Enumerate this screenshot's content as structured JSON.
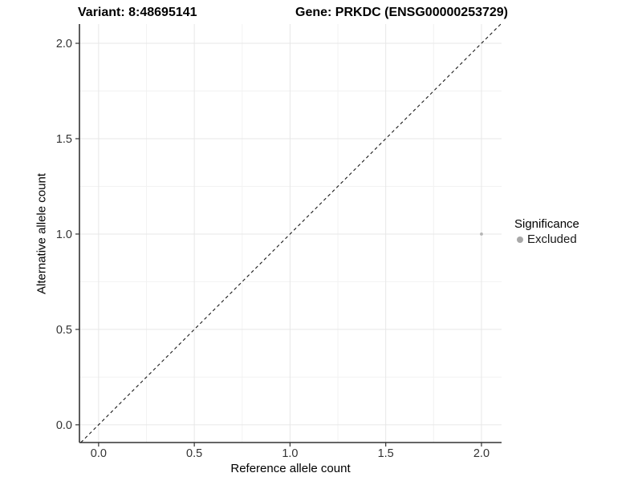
{
  "header": {
    "variant_title": "Variant: 8:48695141",
    "gene_title": "Gene: PRKDC (ENSG00000253729)"
  },
  "chart_data": {
    "type": "scatter",
    "xlabel": "Reference allele count",
    "ylabel": "Alternative allele count",
    "xlim": [
      -0.1,
      2.105
    ],
    "ylim": [
      -0.093,
      2.101
    ],
    "x_ticks": {
      "values": [
        0.0,
        0.5,
        1.0,
        1.5,
        2.0
      ],
      "labels": [
        "0.0",
        "0.5",
        "1.0",
        "1.5",
        "2.0"
      ]
    },
    "y_ticks": {
      "values": [
        0.0,
        0.5,
        1.0,
        1.5,
        2.0
      ],
      "labels": [
        "0.0",
        "0.5",
        "1.0",
        "1.5",
        "2.0"
      ]
    },
    "minor_grid_step": 0.25,
    "grid": true,
    "reference_line": {
      "type": "identity-diagonal",
      "slope": 1,
      "intercept": 0,
      "style": "dashed",
      "color": "#1a1a1a"
    },
    "series": [
      {
        "name": "Excluded",
        "color": "#b5b5b5",
        "points": [
          {
            "x": 2.0,
            "y": 1.0
          }
        ]
      }
    ],
    "legend": {
      "position": "right",
      "title": "Significance",
      "entries": [
        {
          "label": "Excluded",
          "color": "#a8a8a8"
        }
      ]
    }
  },
  "colors": {
    "excluded_point": "#b5b5b5",
    "legend_dot": "#a8a8a8",
    "axis_line": "#333333",
    "tick_label": "#333333",
    "major_grid": "#e7e7e7",
    "minor_grid": "#f2f2f2"
  }
}
